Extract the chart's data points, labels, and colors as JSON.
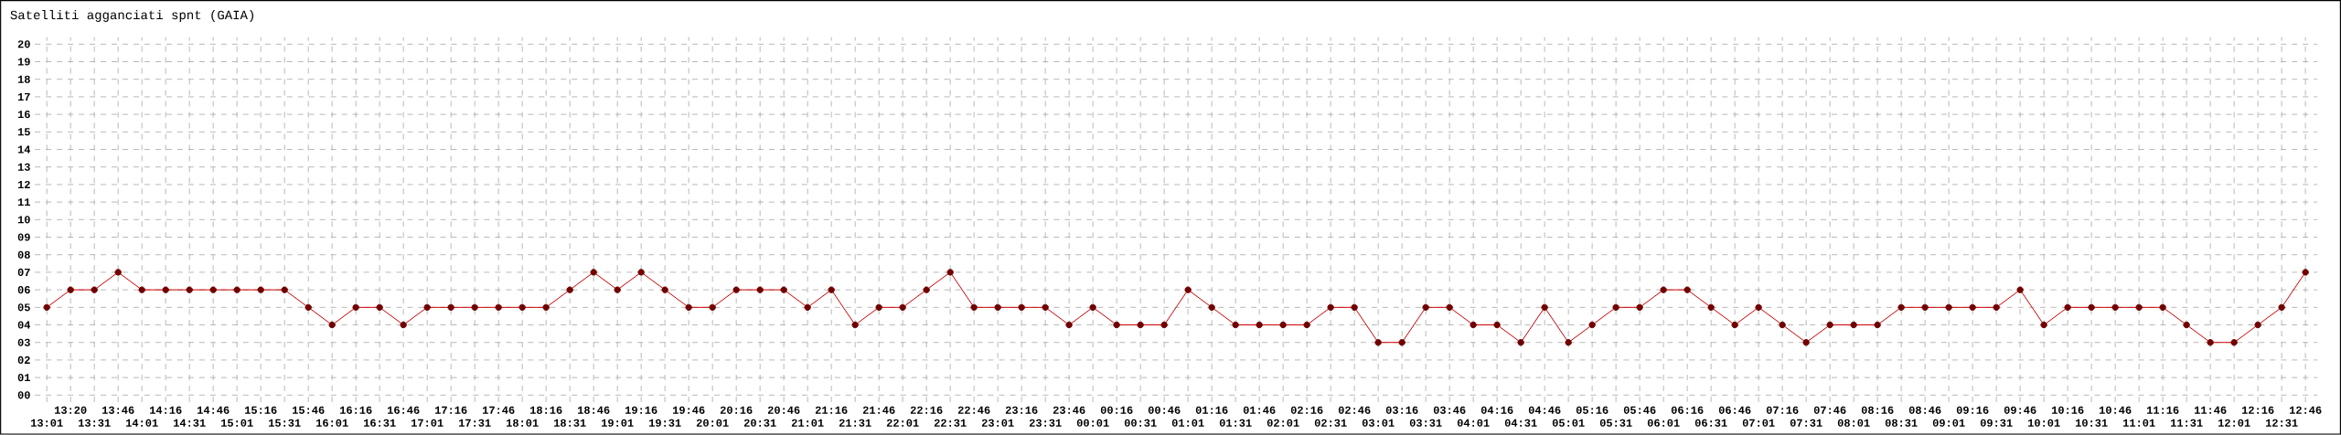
{
  "chart_data": {
    "type": "line",
    "title": "Satelliti agganciati spnt (GAIA)",
    "categories": [
      "13:01",
      "13:20",
      "13:31",
      "13:46",
      "14:01",
      "14:16",
      "14:31",
      "14:46",
      "15:01",
      "15:16",
      "15:31",
      "15:46",
      "16:01",
      "16:16",
      "16:31",
      "16:46",
      "17:01",
      "17:16",
      "17:31",
      "17:46",
      "18:01",
      "18:16",
      "18:31",
      "18:46",
      "19:01",
      "19:16",
      "19:31",
      "19:46",
      "20:01",
      "20:16",
      "20:31",
      "20:46",
      "21:01",
      "21:16",
      "21:31",
      "21:46",
      "22:01",
      "22:16",
      "22:31",
      "22:46",
      "23:01",
      "23:16",
      "23:31",
      "23:46",
      "00:01",
      "00:16",
      "00:31",
      "00:46",
      "01:01",
      "01:16",
      "01:31",
      "01:46",
      "02:01",
      "02:16",
      "02:31",
      "02:46",
      "03:01",
      "03:16",
      "03:31",
      "03:46",
      "04:01",
      "04:16",
      "04:31",
      "04:46",
      "05:01",
      "05:16",
      "05:31",
      "05:46",
      "06:01",
      "06:16",
      "06:31",
      "06:46",
      "07:01",
      "07:16",
      "07:31",
      "07:46",
      "08:01",
      "08:16",
      "08:31",
      "08:46",
      "09:01",
      "09:16",
      "09:31",
      "09:46",
      "10:01",
      "10:16",
      "10:31",
      "10:46",
      "11:01",
      "11:16",
      "11:31",
      "11:46",
      "12:01",
      "12:16",
      "12:31",
      "12:46"
    ],
    "series": [
      {
        "color": "#cc0000",
        "values": [
          5,
          6,
          6,
          7,
          6,
          6,
          6,
          6,
          6,
          6,
          6,
          5,
          4,
          5,
          5,
          4,
          5,
          5,
          5,
          5,
          5,
          5,
          6,
          7,
          6,
          7,
          6,
          5,
          5,
          6,
          6,
          6,
          5,
          6,
          4,
          5,
          5,
          6,
          7,
          5,
          5,
          5,
          5,
          4,
          5,
          4,
          4,
          4,
          6,
          5,
          4,
          4,
          4,
          4,
          5,
          5,
          3,
          3,
          5,
          5,
          4,
          4,
          3,
          5,
          3,
          4,
          5,
          5,
          6,
          6,
          5,
          4,
          5,
          4,
          3,
          4,
          4,
          4,
          5,
          5,
          5,
          5,
          5,
          6,
          4,
          5,
          5,
          5,
          5,
          5,
          4,
          3,
          3,
          4,
          5,
          7
        ]
      }
    ],
    "ylim": [
      0,
      20
    ],
    "yticks": [
      {
        "value": 0,
        "label": "00"
      },
      {
        "value": 1,
        "label": "01"
      },
      {
        "value": 2,
        "label": "02"
      },
      {
        "value": 3,
        "label": "03"
      },
      {
        "value": 4,
        "label": "04"
      },
      {
        "value": 5,
        "label": "05"
      },
      {
        "value": 6,
        "label": "06"
      },
      {
        "value": 7,
        "label": "07"
      },
      {
        "value": 8,
        "label": "08"
      },
      {
        "value": 9,
        "label": "09"
      },
      10,
      11,
      12,
      13,
      14,
      15,
      16,
      17,
      18,
      19,
      20
    ],
    "grid": true,
    "marker": "circle",
    "line_style": "solid"
  }
}
